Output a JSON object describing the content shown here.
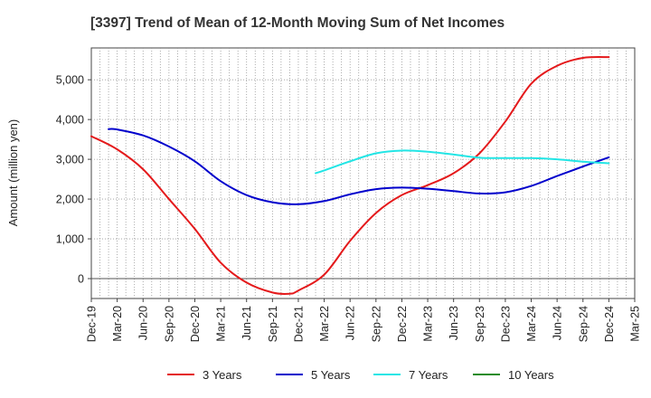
{
  "chart_data": {
    "type": "line",
    "title": "[3397]  Trend of Mean of 12-Month Moving Sum of Net Incomes",
    "ylabel": "Amount (million yen)",
    "xlabel": "",
    "x_ticks": [
      "Dec-19",
      "Mar-20",
      "Jun-20",
      "Sep-20",
      "Dec-20",
      "Mar-21",
      "Jun-21",
      "Sep-21",
      "Dec-21",
      "Mar-22",
      "Jun-22",
      "Sep-22",
      "Dec-22",
      "Mar-23",
      "Jun-23",
      "Sep-23",
      "Dec-23",
      "Mar-24",
      "Jun-24",
      "Sep-24",
      "Dec-24",
      "Mar-25"
    ],
    "y_ticks": [
      0,
      1000,
      2000,
      3000,
      4000,
      5000
    ],
    "y_tick_labels": [
      "0",
      "1,000",
      "2,000",
      "3,000",
      "4,000",
      "5,000"
    ],
    "ylim": [
      -500,
      5800
    ],
    "grid": true,
    "legend_position": "bottom",
    "series": [
      {
        "name": "3 Years",
        "color": "#e41a1c",
        "x": [
          "Dec-19",
          "Mar-20",
          "Jun-20",
          "Sep-20",
          "Dec-20",
          "Mar-21",
          "Jun-21",
          "Sep-21",
          "Nov-21",
          "Dec-21",
          "Mar-22",
          "Jun-22",
          "Sep-22",
          "Dec-22",
          "Mar-23",
          "Jun-23",
          "Sep-23",
          "Dec-23",
          "Mar-24",
          "Jun-24",
          "Sep-24",
          "Dec-24"
        ],
        "values": [
          3580,
          3250,
          2750,
          2000,
          1250,
          400,
          -100,
          -350,
          -380,
          -300,
          100,
          950,
          1650,
          2100,
          2350,
          2650,
          3150,
          3950,
          4900,
          5350,
          5550,
          5570
        ]
      },
      {
        "name": "5 Years",
        "color": "#0000cc",
        "x": [
          "Feb-20",
          "Mar-20",
          "Jun-20",
          "Sep-20",
          "Dec-20",
          "Mar-21",
          "Jun-21",
          "Sep-21",
          "Dec-21",
          "Mar-22",
          "Jun-22",
          "Sep-22",
          "Dec-22",
          "Mar-23",
          "Jun-23",
          "Sep-23",
          "Dec-23",
          "Mar-24",
          "Jun-24",
          "Sep-24",
          "Dec-24"
        ],
        "values": [
          3760,
          3750,
          3600,
          3320,
          2950,
          2450,
          2100,
          1920,
          1870,
          1950,
          2120,
          2250,
          2290,
          2260,
          2200,
          2140,
          2170,
          2330,
          2580,
          2820,
          3050
        ]
      },
      {
        "name": "7 Years",
        "color": "#22e5e5",
        "x": [
          "Feb-22",
          "Mar-22",
          "Jun-22",
          "Sep-22",
          "Dec-22",
          "Mar-23",
          "Jun-23",
          "Sep-23",
          "Dec-23",
          "Mar-24",
          "Jun-24",
          "Sep-24",
          "Dec-24"
        ],
        "values": [
          2650,
          2720,
          2950,
          3150,
          3220,
          3190,
          3120,
          3040,
          3030,
          3030,
          3000,
          2940,
          2900
        ]
      },
      {
        "name": "10 Years",
        "color": "#228b22",
        "x": [],
        "values": []
      }
    ]
  }
}
